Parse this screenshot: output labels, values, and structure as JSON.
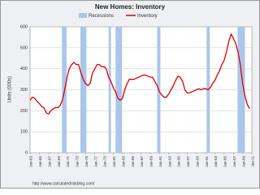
{
  "chart_data": {
    "type": "line",
    "title": "New Homes: Inventory",
    "y_label": "Units (000s)",
    "source": "http://www.calculatedriskblog.com/",
    "recessions": {
      "name": "Recessions",
      "color": "#a9c6ec",
      "spans": [
        [
          1969.9,
          1970.9
        ],
        [
          1973.9,
          1975.2
        ],
        [
          1980.0,
          1980.5
        ],
        [
          1981.5,
          1982.9
        ],
        [
          1990.5,
          1991.2
        ],
        [
          2001.2,
          2001.9
        ],
        [
          2007.9,
          2009.5
        ]
      ]
    },
    "x": [
      1963,
      1963.5,
      1964,
      1964.5,
      1965,
      1965.5,
      1966,
      1966.5,
      1967,
      1967.5,
      1968,
      1968.5,
      1969,
      1969.5,
      1970,
      1970.5,
      1971,
      1971.5,
      1972,
      1972.5,
      1973,
      1973.5,
      1974,
      1974.5,
      1975,
      1975.5,
      1976,
      1976.5,
      1977,
      1977.5,
      1978,
      1978.5,
      1979,
      1979.5,
      1980,
      1980.5,
      1981,
      1981.5,
      1982,
      1982.5,
      1983,
      1983.5,
      1984,
      1984.5,
      1985,
      1985.5,
      1986,
      1986.5,
      1987,
      1987.5,
      1988,
      1988.5,
      1989,
      1989.5,
      1990,
      1990.5,
      1991,
      1991.5,
      1992,
      1992.5,
      1993,
      1993.5,
      1994,
      1994.5,
      1995,
      1995.5,
      1996,
      1996.5,
      1997,
      1997.5,
      1998,
      1998.5,
      1999,
      1999.5,
      2000,
      2000.5,
      2001,
      2001.5,
      2002,
      2002.5,
      2003,
      2003.5,
      2004,
      2004.5,
      2005,
      2005.5,
      2006,
      2006.5,
      2007,
      2007.5,
      2008,
      2008.5,
      2009,
      2009.5,
      2010,
      2010.5
    ],
    "series": [
      {
        "name": "Inventory",
        "color": "#e00000",
        "values": [
          250,
          265,
          260,
          245,
          235,
          220,
          215,
          190,
          185,
          200,
          210,
          215,
          215,
          225,
          250,
          300,
          360,
          400,
          420,
          430,
          420,
          420,
          380,
          350,
          330,
          320,
          330,
          380,
          400,
          420,
          420,
          410,
          410,
          400,
          360,
          340,
          310,
          290,
          260,
          250,
          260,
          300,
          330,
          350,
          350,
          350,
          355,
          360,
          365,
          370,
          370,
          365,
          360,
          360,
          340,
          320,
          290,
          275,
          265,
          265,
          280,
          300,
          320,
          345,
          365,
          360,
          340,
          300,
          285,
          285,
          290,
          295,
          300,
          305,
          300,
          305,
          305,
          300,
          310,
          330,
          345,
          370,
          390,
          420,
          440,
          480,
          530,
          565,
          545,
          520,
          480,
          420,
          330,
          270,
          230,
          210
        ]
      }
    ],
    "xlim": [
      1963,
      2011
    ],
    "xticks": [
      {
        "value": 1963,
        "label": "Jan-63"
      },
      {
        "value": 1965,
        "label": "Jan-65"
      },
      {
        "value": 1967,
        "label": "Jan-67"
      },
      {
        "value": 1969,
        "label": "Jan-69"
      },
      {
        "value": 1971,
        "label": "Jan-71"
      },
      {
        "value": 1973,
        "label": "Jan-73"
      },
      {
        "value": 1975,
        "label": "Jan-75"
      },
      {
        "value": 1977,
        "label": "Jan-77"
      },
      {
        "value": 1979,
        "label": "Jan-79"
      },
      {
        "value": 1981,
        "label": "Jan-81"
      },
      {
        "value": 1983,
        "label": "Jan-83"
      },
      {
        "value": 1985,
        "label": "Jan-85"
      },
      {
        "value": 1987,
        "label": "Jan-87"
      },
      {
        "value": 1989,
        "label": "Jan-89"
      },
      {
        "value": 1991,
        "label": "Jan-91"
      },
      {
        "value": 1993,
        "label": "Jan-93"
      },
      {
        "value": 1995,
        "label": "Jan-95"
      },
      {
        "value": 1997,
        "label": "Jan-97"
      },
      {
        "value": 1999,
        "label": "Jan-99"
      },
      {
        "value": 2001,
        "label": "Jan-01"
      },
      {
        "value": 2003,
        "label": "Jan-03"
      },
      {
        "value": 2005,
        "label": "Jan-05"
      },
      {
        "value": 2007,
        "label": "Jan-07"
      },
      {
        "value": 2009,
        "label": "Jan-09"
      },
      {
        "value": 2011,
        "label": "Jan-11"
      }
    ],
    "ylim": [
      0,
      600
    ],
    "yticks": [
      0,
      100,
      200,
      300,
      400,
      500,
      600
    ],
    "grid": true
  }
}
